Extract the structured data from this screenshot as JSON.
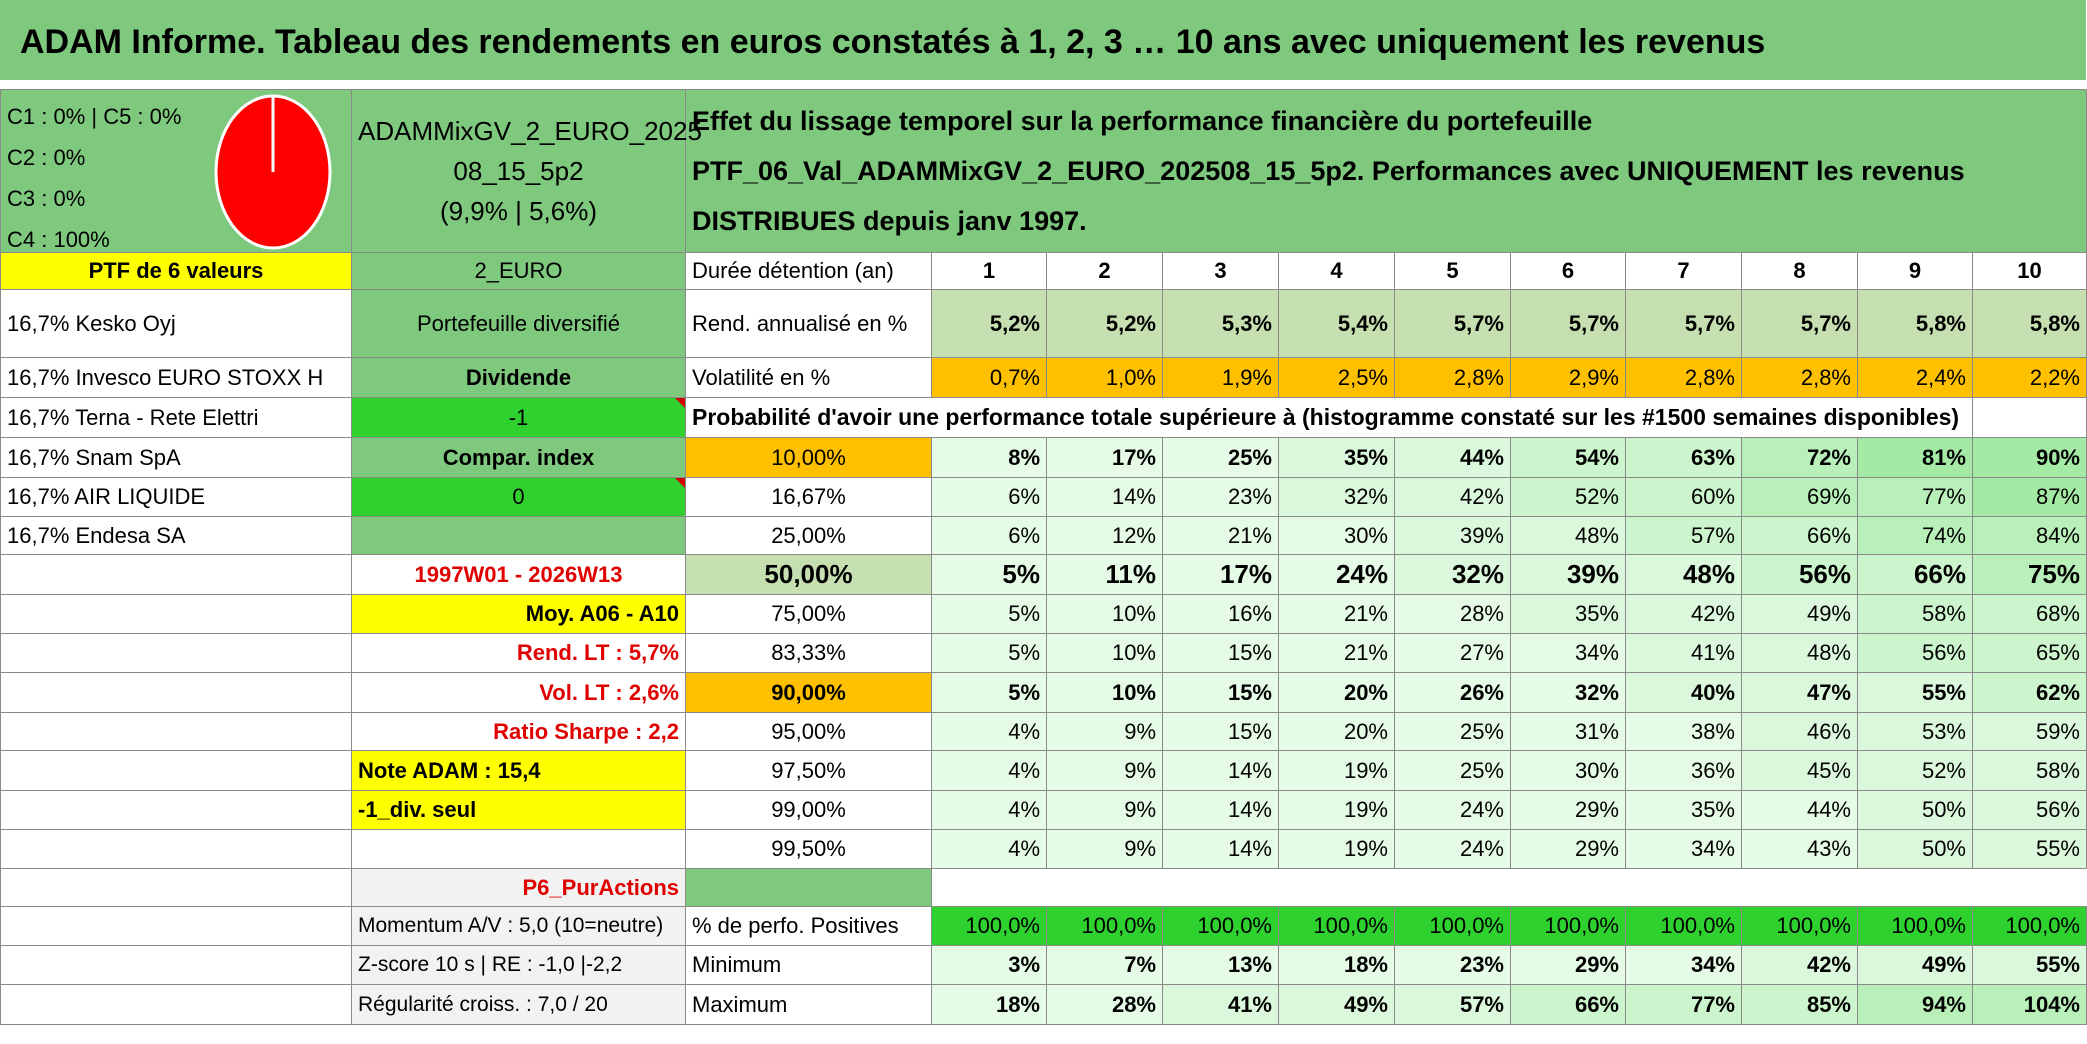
{
  "title": "ADAM Informe. Tableau des rendements en euros constatés à 1, 2, 3 … 10 ans avec uniquement les revenus",
  "allocation": [
    "C1 : 0% | C5 : 0%",
    "C2 : 0%",
    "C3 : 0%",
    "C4 : 100%"
  ],
  "pie": {
    "fill": "#ff0000",
    "share": 1.0
  },
  "fund": {
    "line1": "ADAMMixGV_2_EURO_2025",
    "line2": "08_15_5p2",
    "line3": "(9,9% | 5,6%)"
  },
  "effect_text": "Effet du lissage temporel sur la performance financière du portefeuille PTF_06_Val_ADAMMixGV_2_EURO_202508_15_5p2. Performances avec UNIQUEMENT les revenus DISTRIBUES depuis janv 1997.",
  "ptf_label": "PTF de 6 valeurs",
  "currency": "2_EURO",
  "duration_label": "Durée détention (an)",
  "years": [
    "1",
    "2",
    "3",
    "4",
    "5",
    "6",
    "7",
    "8",
    "9",
    "10"
  ],
  "holdings": [
    "16,7% Kesko Oyj",
    "16,7% Invesco EURO STOXX H",
    "16,7% Terna - Rete Elettri",
    "16,7% Snam SpA",
    "16,7% AIR LIQUIDE",
    "16,7% Endesa SA"
  ],
  "info": {
    "diversified": "Portefeuille diversifié",
    "dividend": "Dividende",
    "dividend_value": "-1",
    "compar_index": "Compar. index",
    "compar_value": "0"
  },
  "rend_label": "Rend. annualisé en %",
  "rend_values": [
    "5,2%",
    "5,2%",
    "5,3%",
    "5,4%",
    "5,7%",
    "5,7%",
    "5,7%",
    "5,7%",
    "5,8%",
    "5,8%"
  ],
  "vol_label": "Volatilité en %",
  "vol_values": [
    "0,7%",
    "1,0%",
    "1,9%",
    "2,5%",
    "2,8%",
    "2,9%",
    "2,8%",
    "2,8%",
    "2,4%",
    "2,2%"
  ],
  "prob_header": "Probabilité d'avoir une performance totale supérieure à (histogramme constaté sur les #1500 semaines disponibles)",
  "left_stats": {
    "period": "1997W01 - 2026W13",
    "moy": "Moy. A06 - A10",
    "rend_lt": "Rend. LT : 5,7%",
    "vol_lt": "Vol. LT : 2,6%",
    "sharpe": "Ratio Sharpe : 2,2",
    "note": "Note ADAM : 15,4",
    "div_seul": "-1_div. seul",
    "p6": "P6_PurActions"
  },
  "prob_rows": [
    {
      "pct": "10,00%",
      "values": [
        "8%",
        "17%",
        "25%",
        "35%",
        "44%",
        "54%",
        "63%",
        "72%",
        "81%",
        "90%"
      ]
    },
    {
      "pct": "16,67%",
      "values": [
        "6%",
        "14%",
        "23%",
        "32%",
        "42%",
        "52%",
        "60%",
        "69%",
        "77%",
        "87%"
      ]
    },
    {
      "pct": "25,00%",
      "values": [
        "6%",
        "12%",
        "21%",
        "30%",
        "39%",
        "48%",
        "57%",
        "66%",
        "74%",
        "84%"
      ]
    },
    {
      "pct": "50,00%",
      "values": [
        "5%",
        "11%",
        "17%",
        "24%",
        "32%",
        "39%",
        "48%",
        "56%",
        "66%",
        "75%"
      ]
    },
    {
      "pct": "75,00%",
      "values": [
        "5%",
        "10%",
        "16%",
        "21%",
        "28%",
        "35%",
        "42%",
        "49%",
        "58%",
        "68%"
      ]
    },
    {
      "pct": "83,33%",
      "values": [
        "5%",
        "10%",
        "15%",
        "21%",
        "27%",
        "34%",
        "41%",
        "48%",
        "56%",
        "65%"
      ]
    },
    {
      "pct": "90,00%",
      "values": [
        "5%",
        "10%",
        "15%",
        "20%",
        "26%",
        "32%",
        "40%",
        "47%",
        "55%",
        "62%"
      ]
    },
    {
      "pct": "95,00%",
      "values": [
        "4%",
        "9%",
        "15%",
        "20%",
        "25%",
        "31%",
        "38%",
        "46%",
        "53%",
        "59%"
      ]
    },
    {
      "pct": "97,50%",
      "values": [
        "4%",
        "9%",
        "14%",
        "19%",
        "25%",
        "30%",
        "36%",
        "45%",
        "52%",
        "58%"
      ]
    },
    {
      "pct": "99,00%",
      "values": [
        "4%",
        "9%",
        "14%",
        "19%",
        "24%",
        "29%",
        "35%",
        "44%",
        "50%",
        "56%"
      ]
    },
    {
      "pct": "99,50%",
      "values": [
        "4%",
        "9%",
        "14%",
        "19%",
        "24%",
        "29%",
        "34%",
        "43%",
        "50%",
        "55%"
      ]
    }
  ],
  "bottom": {
    "momentum": "Momentum A/V : 5,0 (10=neutre)",
    "zscore": "Z-score 10 s | RE : -1,0 |-2,2",
    "regularite": "Régularité croiss. : 7,0 / 20",
    "pos_label": "% de perfo. Positives",
    "pos_values": [
      "100,0%",
      "100,0%",
      "100,0%",
      "100,0%",
      "100,0%",
      "100,0%",
      "100,0%",
      "100,0%",
      "100,0%",
      "100,0%"
    ],
    "min_label": "Minimum",
    "min_values": [
      "3%",
      "7%",
      "13%",
      "18%",
      "23%",
      "29%",
      "34%",
      "42%",
      "49%",
      "55%"
    ],
    "max_label": "Maximum",
    "max_values": [
      "18%",
      "28%",
      "41%",
      "49%",
      "57%",
      "66%",
      "77%",
      "85%",
      "94%",
      "104%"
    ]
  }
}
